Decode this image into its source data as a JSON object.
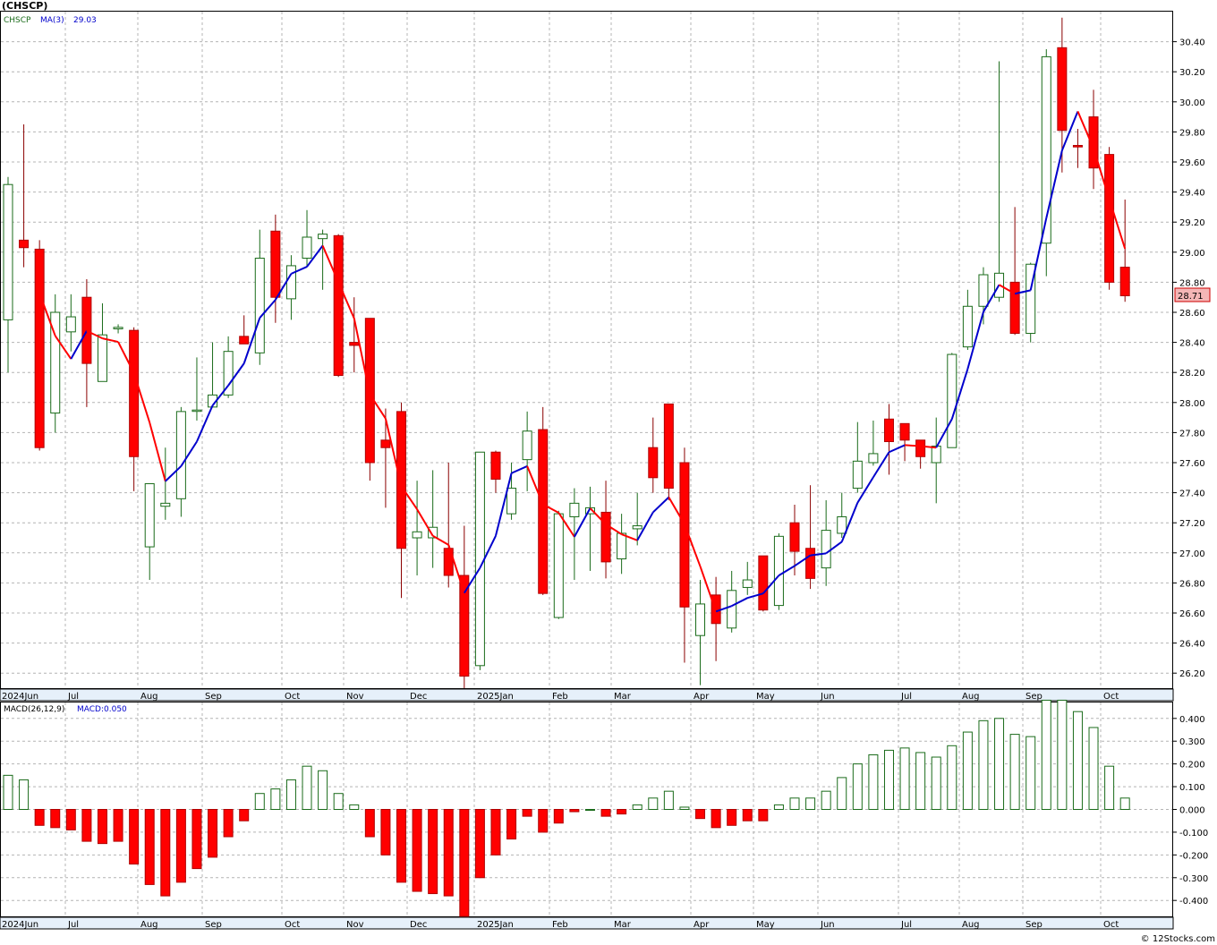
{
  "header": {
    "title": "(CHSCP)"
  },
  "price_panel": {
    "legend": {
      "symbol": "CHSCP",
      "ma_label": "MA(3)",
      "ma_value": "29.03"
    },
    "last_price_label": "28.71",
    "y_ticks": [
      "30.40",
      "30.20",
      "30.00",
      "29.80",
      "29.60",
      "29.40",
      "29.20",
      "29.00",
      "28.80",
      "28.60",
      "28.40",
      "28.20",
      "28.00",
      "27.80",
      "27.60",
      "27.40",
      "27.20",
      "27.00",
      "26.80",
      "26.60",
      "26.40",
      "26.20"
    ]
  },
  "macd_panel": {
    "legend": {
      "label": "MACD(26,12,9)",
      "value_label": "MACD:0.050"
    },
    "y_ticks": [
      "0.400",
      "0.300",
      "0.200",
      "0.100",
      "0.000",
      "-0.100",
      "-0.200",
      "-0.300",
      "-0.400"
    ]
  },
  "months": [
    "2024Jun",
    "Jul",
    "Aug",
    "Sep",
    "Oct",
    "Nov",
    "Dec",
    "2025Jan",
    "Feb",
    "Mar",
    "Apr",
    "May",
    "Jun",
    "Jul",
    "Aug",
    "Sep",
    "Oct"
  ],
  "credit": "© 12Stocks.com",
  "colors": {
    "up": "#1a6b1a",
    "down": "#ff0000",
    "ma_up": "#0000cc",
    "ma_down": "#ff0000",
    "macd_up": "#1a6b1a",
    "macd_down": "#ff0000"
  },
  "chart_data": [
    {
      "type": "candlestick",
      "symbol": "CHSCP",
      "timeframe": "weekly",
      "ylim": [
        26.1,
        30.6
      ],
      "ma_period": 3,
      "candles": [
        {
          "o": 28.55,
          "h": 29.5,
          "l": 28.2,
          "c": 29.45
        },
        {
          "o": 29.08,
          "h": 29.85,
          "l": 28.9,
          "c": 29.03
        },
        {
          "o": 29.02,
          "h": 29.08,
          "l": 27.68,
          "c": 27.7
        },
        {
          "o": 27.93,
          "h": 28.72,
          "l": 27.8,
          "c": 28.6
        },
        {
          "o": 28.47,
          "h": 28.72,
          "l": 28.34,
          "c": 28.57
        },
        {
          "o": 28.7,
          "h": 28.82,
          "l": 27.97,
          "c": 28.26
        },
        {
          "o": 28.14,
          "h": 28.66,
          "l": 28.14,
          "c": 28.45
        },
        {
          "o": 28.49,
          "h": 28.52,
          "l": 28.46,
          "c": 28.5
        },
        {
          "o": 28.48,
          "h": 28.5,
          "l": 27.41,
          "c": 27.64
        },
        {
          "o": 27.04,
          "h": 27.46,
          "l": 26.82,
          "c": 27.46
        },
        {
          "o": 27.31,
          "h": 27.7,
          "l": 27.22,
          "c": 27.33
        },
        {
          "o": 27.36,
          "h": 27.97,
          "l": 27.24,
          "c": 27.94
        },
        {
          "o": 27.95,
          "h": 28.3,
          "l": 27.88,
          "c": 27.95
        },
        {
          "o": 27.97,
          "h": 28.4,
          "l": 27.97,
          "c": 28.05
        },
        {
          "o": 28.05,
          "h": 28.44,
          "l": 28.03,
          "c": 28.34
        },
        {
          "o": 28.44,
          "h": 28.58,
          "l": 28.42,
          "c": 28.39
        },
        {
          "o": 28.33,
          "h": 29.15,
          "l": 28.25,
          "c": 28.96
        },
        {
          "o": 29.14,
          "h": 29.25,
          "l": 28.53,
          "c": 28.7
        },
        {
          "o": 28.69,
          "h": 28.98,
          "l": 28.55,
          "c": 28.91
        },
        {
          "o": 28.96,
          "h": 29.28,
          "l": 28.9,
          "c": 29.1
        },
        {
          "o": 29.09,
          "h": 29.15,
          "l": 28.75,
          "c": 29.12
        },
        {
          "o": 29.11,
          "h": 29.12,
          "l": 28.17,
          "c": 28.18
        },
        {
          "o": 28.4,
          "h": 28.7,
          "l": 28.2,
          "c": 28.38
        },
        {
          "o": 28.56,
          "h": 28.56,
          "l": 27.48,
          "c": 27.6
        },
        {
          "o": 27.75,
          "h": 27.96,
          "l": 27.3,
          "c": 27.7
        },
        {
          "o": 27.94,
          "h": 28.0,
          "l": 26.7,
          "c": 27.03
        },
        {
          "o": 27.1,
          "h": 27.48,
          "l": 26.85,
          "c": 27.14
        },
        {
          "o": 27.1,
          "h": 27.55,
          "l": 26.9,
          "c": 27.17
        },
        {
          "o": 27.03,
          "h": 27.6,
          "l": 26.77,
          "c": 26.85
        },
        {
          "o": 26.85,
          "h": 27.18,
          "l": 26.1,
          "c": 26.18
        },
        {
          "o": 26.25,
          "h": 27.67,
          "l": 26.22,
          "c": 27.67
        },
        {
          "o": 27.67,
          "h": 27.68,
          "l": 27.4,
          "c": 27.49
        },
        {
          "o": 27.26,
          "h": 27.6,
          "l": 27.22,
          "c": 27.43
        },
        {
          "o": 27.62,
          "h": 27.94,
          "l": 27.41,
          "c": 27.81
        },
        {
          "o": 27.82,
          "h": 27.97,
          "l": 26.72,
          "c": 26.73
        },
        {
          "o": 26.57,
          "h": 27.28,
          "l": 26.56,
          "c": 27.26
        },
        {
          "o": 27.24,
          "h": 27.43,
          "l": 26.82,
          "c": 27.33
        },
        {
          "o": 27.26,
          "h": 27.44,
          "l": 26.88,
          "c": 27.3
        },
        {
          "o": 27.27,
          "h": 27.48,
          "l": 26.83,
          "c": 26.94
        },
        {
          "o": 26.96,
          "h": 27.26,
          "l": 26.86,
          "c": 27.13
        },
        {
          "o": 27.16,
          "h": 27.4,
          "l": 27.05,
          "c": 27.18
        },
        {
          "o": 27.7,
          "h": 27.9,
          "l": 27.4,
          "c": 27.5
        },
        {
          "o": 27.99,
          "h": 27.99,
          "l": 27.35,
          "c": 27.43
        },
        {
          "o": 27.6,
          "h": 27.7,
          "l": 26.27,
          "c": 26.64
        },
        {
          "o": 26.45,
          "h": 26.82,
          "l": 26.12,
          "c": 26.66
        },
        {
          "o": 26.72,
          "h": 26.84,
          "l": 26.28,
          "c": 26.53
        },
        {
          "o": 26.5,
          "h": 26.88,
          "l": 26.47,
          "c": 26.75
        },
        {
          "o": 26.77,
          "h": 26.94,
          "l": 26.72,
          "c": 26.82
        },
        {
          "o": 26.98,
          "h": 26.98,
          "l": 26.61,
          "c": 26.62
        },
        {
          "o": 26.65,
          "h": 27.13,
          "l": 26.62,
          "c": 27.11
        },
        {
          "o": 27.2,
          "h": 27.32,
          "l": 26.85,
          "c": 27.01
        },
        {
          "o": 27.03,
          "h": 27.45,
          "l": 26.76,
          "c": 26.83
        },
        {
          "o": 26.9,
          "h": 27.35,
          "l": 26.78,
          "c": 27.15
        },
        {
          "o": 27.13,
          "h": 27.4,
          "l": 27.1,
          "c": 27.24
        },
        {
          "o": 27.43,
          "h": 27.87,
          "l": 27.4,
          "c": 27.61
        },
        {
          "o": 27.6,
          "h": 27.88,
          "l": 27.58,
          "c": 27.66
        },
        {
          "o": 27.89,
          "h": 27.99,
          "l": 27.52,
          "c": 27.74
        },
        {
          "o": 27.86,
          "h": 27.86,
          "l": 27.61,
          "c": 27.75
        },
        {
          "o": 27.75,
          "h": 27.74,
          "l": 27.56,
          "c": 27.64
        },
        {
          "o": 27.6,
          "h": 27.9,
          "l": 27.33,
          "c": 27.71
        },
        {
          "o": 27.7,
          "h": 28.33,
          "l": 27.7,
          "c": 28.32
        },
        {
          "o": 28.37,
          "h": 28.75,
          "l": 28.35,
          "c": 28.64
        },
        {
          "o": 28.64,
          "h": 28.9,
          "l": 28.52,
          "c": 28.85
        },
        {
          "o": 28.7,
          "h": 30.27,
          "l": 28.67,
          "c": 28.86
        },
        {
          "o": 28.8,
          "h": 29.3,
          "l": 28.45,
          "c": 28.46
        },
        {
          "o": 28.46,
          "h": 28.93,
          "l": 28.4,
          "c": 28.92
        },
        {
          "o": 29.06,
          "h": 30.35,
          "l": 28.84,
          "c": 30.3
        },
        {
          "o": 30.36,
          "h": 30.56,
          "l": 29.53,
          "c": 29.81
        },
        {
          "o": 29.71,
          "h": 29.82,
          "l": 29.56,
          "c": 29.7
        },
        {
          "o": 29.9,
          "h": 30.08,
          "l": 29.42,
          "c": 29.56
        },
        {
          "o": 29.65,
          "h": 29.7,
          "l": 28.75,
          "c": 28.8
        },
        {
          "o": 28.9,
          "h": 29.35,
          "l": 28.67,
          "c": 28.71
        }
      ]
    },
    {
      "type": "bar",
      "name": "MACD(26,12,9)",
      "ylim": [
        -0.47,
        0.47
      ],
      "values": [
        0.15,
        0.13,
        -0.07,
        -0.08,
        -0.09,
        -0.14,
        -0.15,
        -0.14,
        -0.24,
        -0.33,
        -0.38,
        -0.32,
        -0.26,
        -0.21,
        -0.12,
        -0.05,
        0.07,
        0.09,
        0.13,
        0.19,
        0.17,
        0.07,
        0.02,
        -0.12,
        -0.2,
        -0.32,
        -0.36,
        -0.37,
        -0.38,
        -0.47,
        -0.3,
        -0.2,
        -0.13,
        -0.03,
        -0.1,
        -0.06,
        -0.01,
        0.0,
        -0.03,
        -0.02,
        0.02,
        0.05,
        0.08,
        0.01,
        -0.04,
        -0.08,
        -0.07,
        -0.05,
        -0.05,
        0.02,
        0.05,
        0.05,
        0.08,
        0.14,
        0.2,
        0.24,
        0.26,
        0.27,
        0.25,
        0.23,
        0.28,
        0.34,
        0.39,
        0.4,
        0.33,
        0.32,
        0.48,
        0.48,
        0.43,
        0.36,
        0.19,
        0.05
      ]
    }
  ]
}
